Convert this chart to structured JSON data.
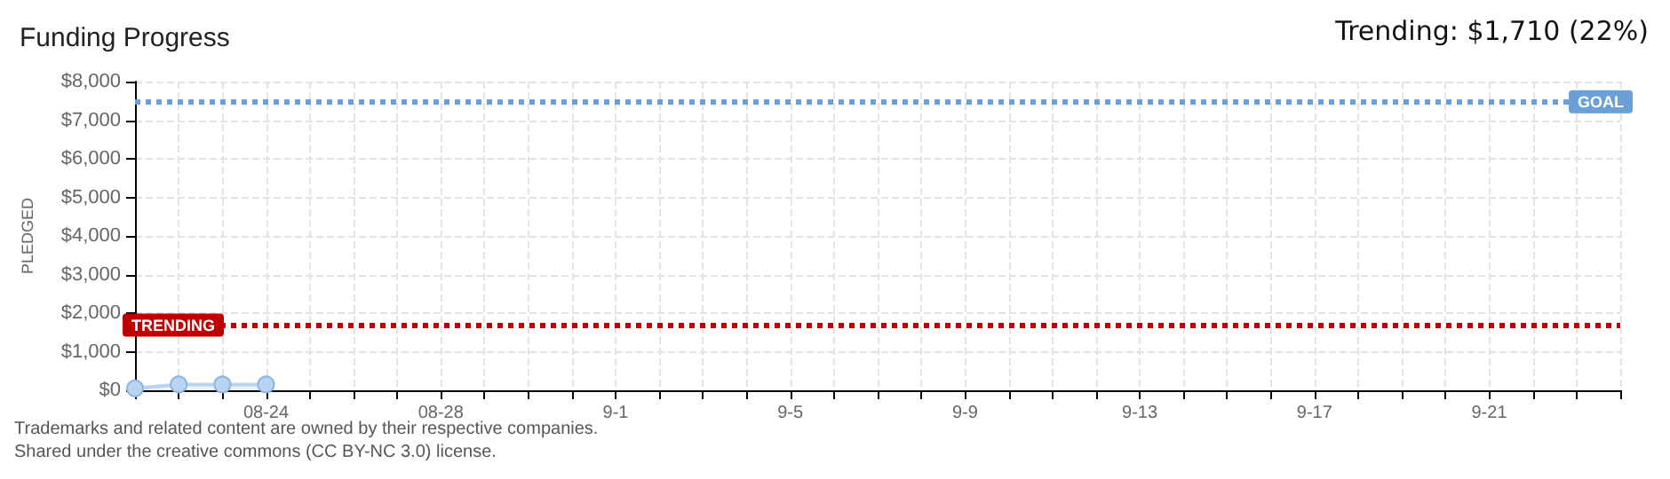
{
  "chart_data": {
    "type": "area",
    "title": "Funding Progress",
    "ylabel": "PLEDGED",
    "annotations": [
      "Trending: $1,710 (22%)",
      "Trademarks and related content are owned by their respective companies.",
      "Shared under the creative commons (CC BY-NC 3.0) license."
    ],
    "x": [
      "--08-21",
      "--08-22",
      "--08-23",
      "--08-24"
    ],
    "series": [
      {
        "color": "#b8d4f0",
        "values": [
          50,
          150,
          150,
          150
        ]
      }
    ],
    "marker": "circle",
    "xlim": [
      "--08-21",
      "--09-24"
    ],
    "xticks": [
      {
        "value": "--08-21",
        "label": null
      },
      {
        "value": "--08-22",
        "label": null
      },
      {
        "value": "--08-23",
        "label": null
      },
      {
        "value": "--08-24",
        "label": "08-24"
      },
      {
        "value": "--08-25",
        "label": null
      },
      {
        "value": "--08-26",
        "label": null
      },
      {
        "value": "--08-27",
        "label": null
      },
      {
        "value": "--08-28",
        "label": "08-28"
      },
      {
        "value": "--08-29",
        "label": null
      },
      {
        "value": "--08-30",
        "label": null
      },
      {
        "value": "--08-31",
        "label": null
      },
      {
        "value": "--09-01",
        "label": "9-1"
      },
      {
        "value": "--09-02",
        "label": null
      },
      {
        "value": "--09-03",
        "label": null
      },
      {
        "value": "--09-04",
        "label": null
      },
      {
        "value": "--09-05",
        "label": "9-5"
      },
      {
        "value": "--09-06",
        "label": null
      },
      {
        "value": "--09-07",
        "label": null
      },
      {
        "value": "--09-08",
        "label": null
      },
      {
        "value": "--09-09",
        "label": "9-9"
      },
      {
        "value": "--09-10",
        "label": null
      },
      {
        "value": "--09-11",
        "label": null
      },
      {
        "value": "--09-12",
        "label": null
      },
      {
        "value": "--09-13",
        "label": "9-13"
      },
      {
        "value": "--09-14",
        "label": null
      },
      {
        "value": "--09-15",
        "label": null
      },
      {
        "value": "--09-16",
        "label": null
      },
      {
        "value": "--09-17",
        "label": "9-17"
      },
      {
        "value": "--09-18",
        "label": null
      },
      {
        "value": "--09-19",
        "label": null
      },
      {
        "value": "--09-20",
        "label": null
      },
      {
        "value": "--09-21",
        "label": "9-21"
      },
      {
        "value": "--09-22",
        "label": null
      },
      {
        "value": "--09-23",
        "label": null
      },
      {
        "value": "--09-24",
        "label": null
      }
    ],
    "ylim": [
      0,
      8000
    ],
    "yticks": [
      {
        "value": 0,
        "label": "$0"
      },
      {
        "value": 1000,
        "label": "$1,000"
      },
      {
        "value": 2000,
        "label": "$2,000"
      },
      {
        "value": 3000,
        "label": "$3,000"
      },
      {
        "value": 4000,
        "label": "$4,000"
      },
      {
        "value": 5000,
        "label": "$5,000"
      },
      {
        "value": 6000,
        "label": "$6,000"
      },
      {
        "value": 7000,
        "label": "$7,000"
      },
      {
        "value": 8000,
        "label": "$8,000"
      }
    ],
    "grid": true,
    "ref_lines": [
      {
        "axis": "y",
        "value": 7500,
        "label": "GOAL",
        "color": "#6a9fd8",
        "line_style": "dotted"
      },
      {
        "axis": "y",
        "value": 1710,
        "label": "TRENDING",
        "color": "#c00000",
        "line_style": "dotted"
      }
    ]
  }
}
